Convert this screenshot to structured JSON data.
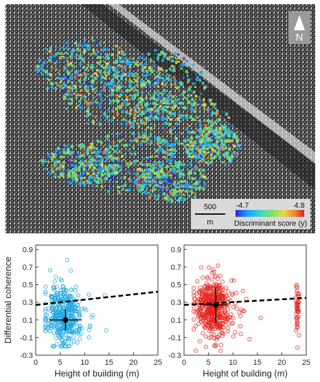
{
  "map": {
    "north_label": "N",
    "scalebar": {
      "value": "500",
      "unit": "m"
    },
    "colorbar": {
      "min_label": "-4.7",
      "max_label": "4.8",
      "title": "Discriminant score (y)",
      "colors": [
        "#2b2bd6",
        "#1fa0ff",
        "#3cd6c8",
        "#7ee06a",
        "#e8d84a",
        "#f08a30",
        "#d42a2a"
      ]
    }
  },
  "chart_data": [
    {
      "type": "scatter",
      "xlabel": "Height of building (m)",
      "ylabel": "Differential coherence",
      "xlim": [
        0,
        25
      ],
      "ylim": [
        -0.3,
        0.95
      ],
      "xticks": [
        0,
        5,
        10,
        15,
        20,
        25
      ],
      "yticks": [
        -0.3,
        -0.1,
        0.1,
        0.3,
        0.5,
        0.7,
        0.9
      ],
      "marker_color": "#1ea7e1",
      "cloud": {
        "x_range": [
          2,
          22
        ],
        "y_range": [
          -0.2,
          0.78
        ],
        "x_center": 6,
        "y_center": 0.15
      },
      "mean_point": {
        "x": 6.1,
        "y": 0.1,
        "x_err": 3.3,
        "y_err": 0.12
      },
      "trend_line": {
        "x": [
          0,
          25
        ],
        "y": [
          0.27,
          0.42
        ]
      }
    },
    {
      "type": "scatter",
      "xlabel": "Height of building (m)",
      "ylabel": "",
      "xlim": [
        0,
        25
      ],
      "ylim": [
        -0.3,
        0.95
      ],
      "xticks": [
        0,
        5,
        10,
        15,
        20,
        25
      ],
      "yticks": [
        -0.3,
        -0.1,
        0.1,
        0.3,
        0.5,
        0.7,
        0.9
      ],
      "marker_color": "#e3261f",
      "cloud": {
        "x_range": [
          2,
          23.5
        ],
        "y_range": [
          -0.25,
          0.88
        ],
        "x_center": 6,
        "y_center": 0.25
      },
      "mean_point": {
        "x": 6.5,
        "y": 0.27,
        "x_err": 2.4,
        "y_err": 0.2
      },
      "trend_line": {
        "x": [
          0,
          25
        ],
        "y": [
          0.27,
          0.35
        ]
      }
    }
  ]
}
